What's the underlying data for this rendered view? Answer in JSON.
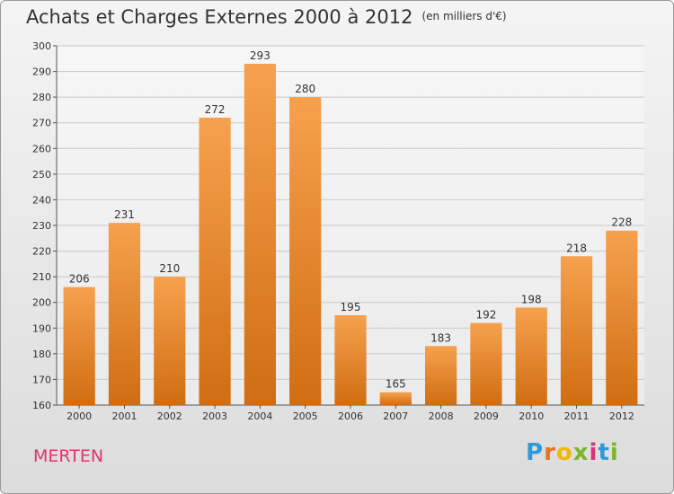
{
  "header": {
    "title": "Achats et Charges Externes 2000 à 2012",
    "unit": "(en milliers d'€)"
  },
  "footer": {
    "location": "MERTEN",
    "brand_parts": [
      "P",
      "r",
      "o",
      "x",
      "i",
      "t",
      "i"
    ]
  },
  "colors": {
    "bar_top": "#f6a14e",
    "bar_bottom": "#d06d12",
    "grid": "#c8c8c8",
    "axis": "#555555",
    "brand_blue": "#2f9ad9",
    "place": "#e0336e"
  },
  "chart_data": {
    "type": "bar",
    "title": "Achats et Charges Externes 2000 à 2012",
    "subtitle": "(en milliers d'€)",
    "categories": [
      "2000",
      "2001",
      "2002",
      "2003",
      "2004",
      "2005",
      "2006",
      "2007",
      "2008",
      "2009",
      "2010",
      "2011",
      "2012"
    ],
    "values": [
      206,
      231,
      210,
      272,
      293,
      280,
      195,
      165,
      183,
      192,
      198,
      218,
      228
    ],
    "xlabel": "",
    "ylabel": "",
    "ylim": [
      160,
      300
    ],
    "yticks": [
      160,
      170,
      180,
      190,
      200,
      210,
      220,
      230,
      240,
      250,
      260,
      270,
      280,
      290,
      300
    ],
    "grid": true,
    "legend": "none"
  }
}
